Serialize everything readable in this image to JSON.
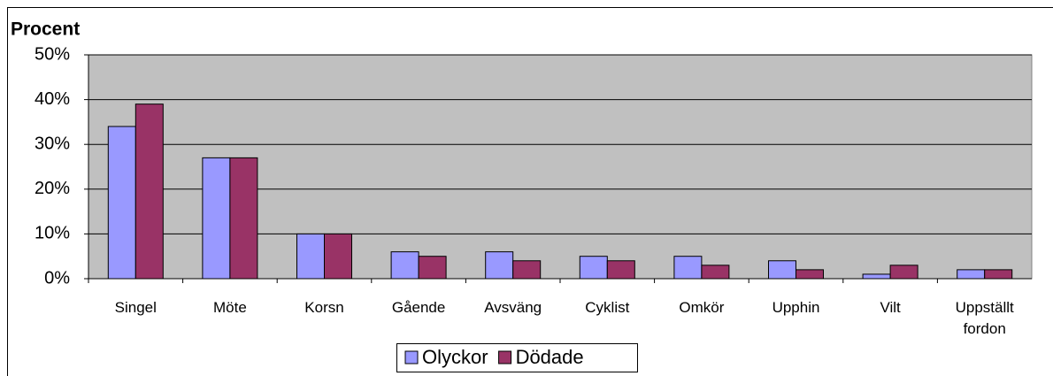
{
  "chart_data": {
    "type": "bar",
    "y_label": "Procent",
    "categories": [
      "Singel",
      "Möte",
      "Korsn",
      "Gående",
      "Avsväng",
      "Cyklist",
      "Omkör",
      "Upphin",
      "Vilt",
      "Uppställt fordon"
    ],
    "series": [
      {
        "name": "Olyckor",
        "color": "#9999ff",
        "values": [
          34,
          27,
          10,
          6,
          6,
          5,
          5,
          4,
          1,
          2
        ]
      },
      {
        "name": "Dödade",
        "color": "#993366",
        "values": [
          39,
          27,
          10,
          5,
          4,
          4,
          3,
          2,
          3,
          2
        ]
      }
    ],
    "ylim": [
      0,
      50
    ],
    "yticks": [
      {
        "value": 0,
        "label": "0%"
      },
      {
        "value": 10,
        "label": "10%"
      },
      {
        "value": 20,
        "label": "20%"
      },
      {
        "value": 30,
        "label": "30%"
      },
      {
        "value": 40,
        "label": "40%"
      },
      {
        "value": 50,
        "label": "50%"
      }
    ],
    "grid": true,
    "legend": "bottom",
    "plot_background": "#c0c0c0"
  }
}
